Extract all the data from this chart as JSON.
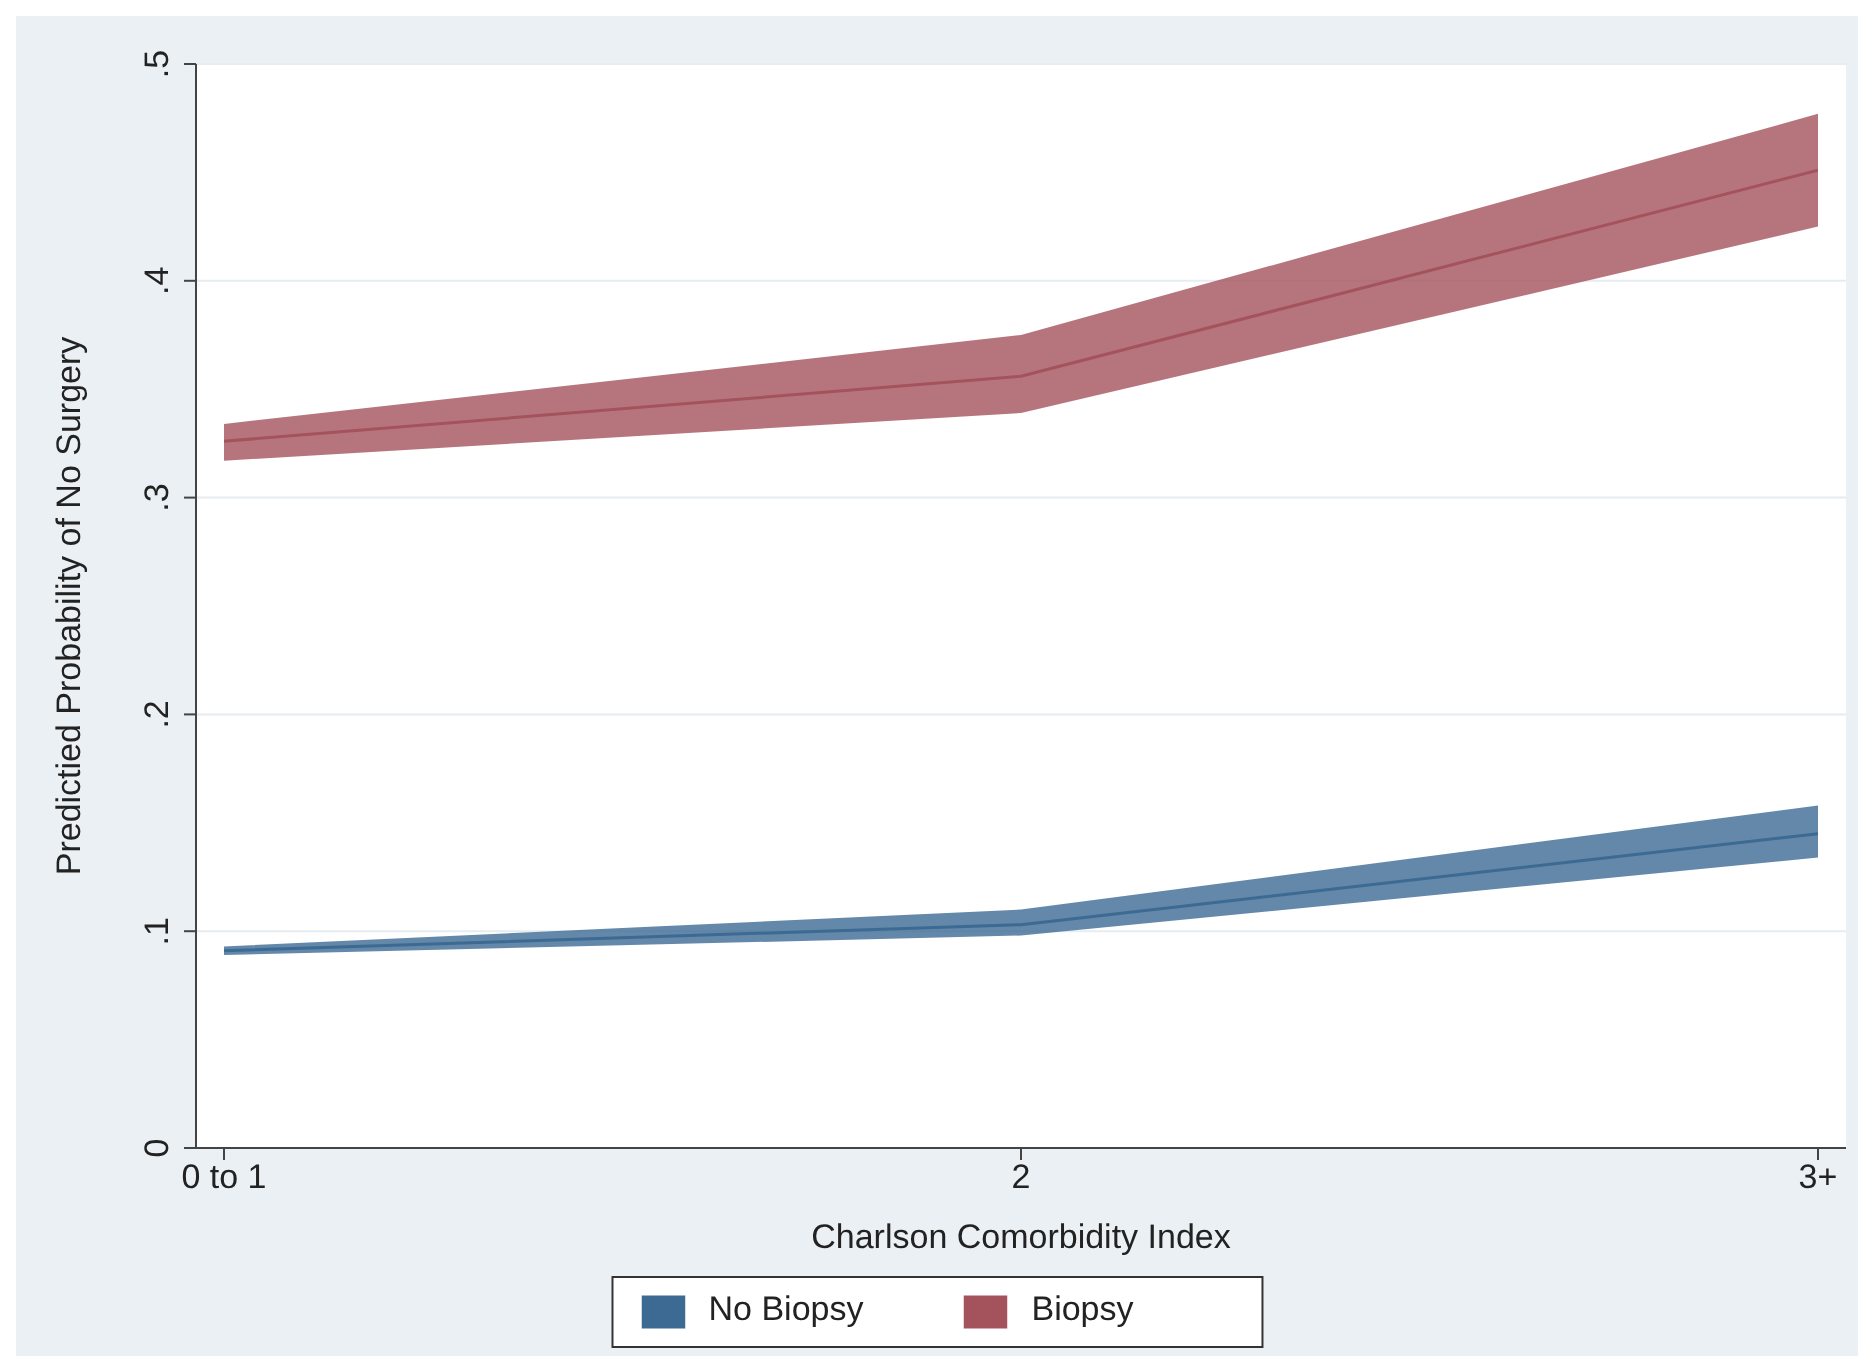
{
  "chart_data": {
    "type": "line",
    "xlabel": "Charlson Comorbidity Index",
    "ylabel": "Predictied Probability of No Surgery",
    "categories": [
      "0 to 1",
      "2",
      "3+"
    ],
    "series": [
      {
        "name": "No Biopsy",
        "color": "#3c6a93",
        "values": [
          0.091,
          0.103,
          0.145
        ],
        "lower": [
          0.089,
          0.098,
          0.134
        ],
        "upper": [
          0.093,
          0.11,
          0.158
        ]
      },
      {
        "name": "Biopsy",
        "color": "#a4535c",
        "values": [
          0.326,
          0.356,
          0.451
        ],
        "lower": [
          0.317,
          0.339,
          0.425
        ],
        "upper": [
          0.334,
          0.375,
          0.477
        ]
      }
    ],
    "ylim": [
      0,
      0.5
    ],
    "yticks": [
      {
        "value": 0,
        "label": "0"
      },
      {
        "value": 0.1,
        "label": ".1"
      },
      {
        "value": 0.2,
        "label": ".2"
      },
      {
        "value": 0.3,
        "label": ".3"
      },
      {
        "value": 0.4,
        "label": ".4"
      },
      {
        "value": 0.5,
        "label": ".5"
      }
    ],
    "grid": "y",
    "legend": "bottom",
    "marker": "none",
    "line_style": "solid"
  }
}
